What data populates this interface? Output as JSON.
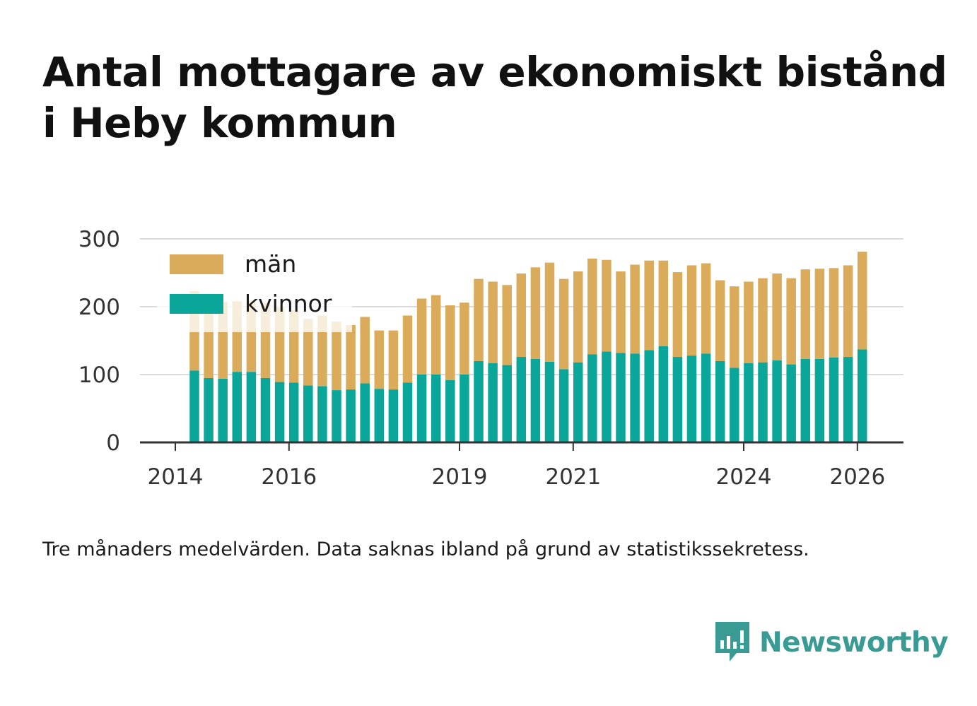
{
  "title": "Antal mottagare av ekonomiskt bistånd i Heby kommun",
  "footnote": "Tre månaders medelvärden. Data saknas ibland på grund av statistikssekretess.",
  "brand": {
    "name": "Newsworthy",
    "icon": "newsworthy-logo-icon"
  },
  "colors": {
    "men": "#d9ab5a",
    "women": "#0aa69a",
    "grid": "#dcdcdc",
    "axis": "#333333"
  },
  "chart_data": {
    "type": "bar",
    "stacked": true,
    "title": "Antal mottagare av ekonomiskt bistånd i Heby kommun",
    "xlabel": "",
    "ylabel": "",
    "ylim": [
      0,
      300
    ],
    "yticks": [
      0,
      100,
      200,
      300
    ],
    "xticks": [
      "2014",
      "2016",
      "2019",
      "2021",
      "2024",
      "2026"
    ],
    "legend": {
      "position": "top-left",
      "entries": [
        "män",
        "kvinnor"
      ]
    },
    "series": [
      {
        "name": "kvinnor",
        "color": "#0aa69a",
        "values": [
          106,
          95,
          94,
          104,
          104,
          95,
          89,
          88,
          84,
          83,
          77,
          78,
          87,
          79,
          78,
          88,
          100,
          100,
          92,
          100,
          120,
          117,
          114,
          126,
          123,
          119,
          108,
          118,
          130,
          134,
          132,
          131,
          136,
          142,
          126,
          128,
          131,
          120,
          110,
          117,
          118,
          121,
          115,
          123,
          123,
          125,
          126,
          137
        ]
      },
      {
        "name": "män",
        "color": "#d9ab5a",
        "values": [
          117,
          120,
          113,
          104,
          104,
          111,
          110,
          107,
          98,
          104,
          101,
          95,
          98,
          86,
          87,
          99,
          112,
          117,
          110,
          106,
          121,
          120,
          118,
          123,
          135,
          146,
          133,
          134,
          141,
          135,
          120,
          131,
          132,
          126,
          125,
          133,
          133,
          119,
          120,
          120,
          124,
          128,
          127,
          132,
          133,
          132,
          135,
          144
        ]
      }
    ]
  }
}
